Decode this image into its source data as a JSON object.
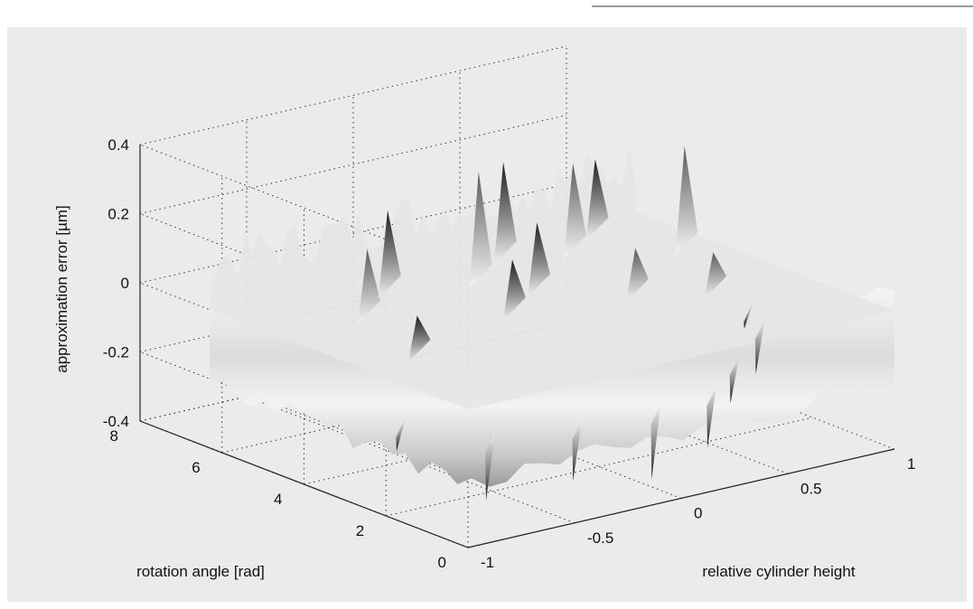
{
  "chart_data": {
    "type": "surface",
    "colormap": "gray",
    "grid": true,
    "zlabel": "approximation error [µm]",
    "xlabel": "relative cylinder height",
    "ylabel": "rotation angle [rad]",
    "x_range": [
      -1,
      1
    ],
    "y_range": [
      0,
      8
    ],
    "z_range": [
      -0.4,
      0.4
    ],
    "x_ticks": [
      "-1",
      "-0.5",
      "0",
      "0.5",
      "1"
    ],
    "y_ticks": [
      "0",
      "2",
      "4",
      "6",
      "8"
    ],
    "z_ticks": [
      "-0.4",
      "-0.2",
      "0",
      "0.2",
      "0.4"
    ],
    "surface_extent": {
      "x": [
        -1,
        1
      ],
      "y": [
        0,
        6.3
      ]
    },
    "error_spread_approx": [
      -0.3,
      0.3
    ],
    "colors": {
      "background": "#ebebeb",
      "grid": "#333333",
      "text": "#111111"
    }
  }
}
